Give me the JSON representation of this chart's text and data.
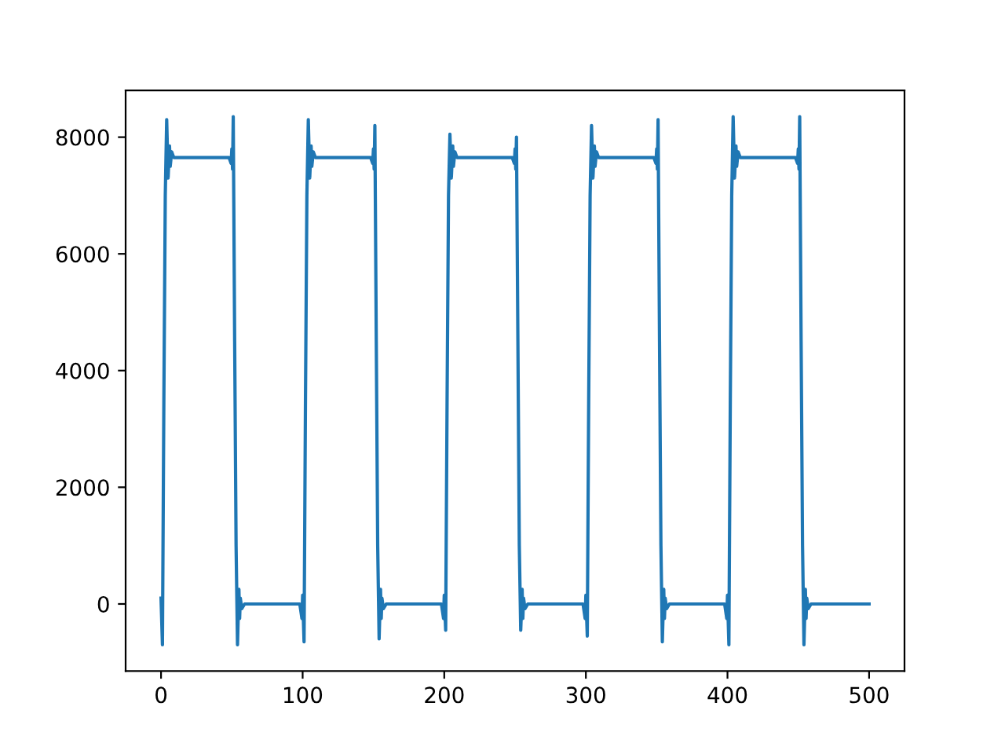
{
  "chart_data": {
    "type": "line",
    "color": "#1f77b4",
    "x": [
      0,
      1,
      2,
      3,
      4,
      5,
      6,
      6.5,
      7.5,
      9,
      48,
      49.5,
      50,
      50.5,
      51,
      52,
      53,
      54,
      55,
      55.5,
      56,
      57,
      59,
      98,
      99.5,
      100,
      101,
      102,
      103,
      104,
      105,
      106,
      106.5,
      107.5,
      109,
      148,
      149.5,
      150,
      150.5,
      151,
      152,
      153,
      154,
      155,
      155.5,
      156,
      157,
      159,
      198,
      199.5,
      200,
      201,
      202,
      203,
      204,
      205,
      206,
      206.5,
      207.5,
      209,
      248,
      249.5,
      250,
      250.5,
      251,
      252,
      253,
      254,
      255,
      255.5,
      256,
      257,
      259,
      298,
      299.5,
      300,
      301,
      302,
      303,
      304,
      305,
      306,
      306.5,
      307.5,
      309,
      348,
      349.5,
      350,
      350.5,
      351,
      352,
      353,
      354,
      355,
      355.5,
      356,
      357,
      359,
      398,
      399.5,
      400,
      401,
      402,
      403,
      404,
      405,
      406,
      406.5,
      407.5,
      409,
      448,
      449.5,
      450,
      450.5,
      451,
      452,
      453,
      454,
      455,
      455.5,
      456,
      457,
      459,
      500
    ],
    "values": [
      100,
      -700,
      3500,
      7000,
      8300,
      7300,
      7850,
      7500,
      7750,
      7650,
      7650,
      7550,
      7800,
      7450,
      8350,
      4500,
      1000,
      -700,
      250,
      -250,
      100,
      -80,
      0,
      0,
      -250,
      150,
      -650,
      3500,
      7000,
      8300,
      7300,
      7850,
      7500,
      7750,
      7650,
      7650,
      7550,
      7800,
      7450,
      8200,
      4500,
      1000,
      -600,
      250,
      -250,
      100,
      -80,
      0,
      0,
      -250,
      150,
      -450,
      3500,
      7000,
      8050,
      7300,
      7850,
      7500,
      7750,
      7650,
      7650,
      7550,
      7800,
      7450,
      8000,
      4500,
      1000,
      -450,
      250,
      -250,
      100,
      -80,
      0,
      0,
      -250,
      150,
      -550,
      3500,
      7000,
      8200,
      7300,
      7850,
      7500,
      7750,
      7650,
      7650,
      7550,
      7800,
      7450,
      8300,
      4500,
      1000,
      -650,
      250,
      -250,
      100,
      -80,
      0,
      0,
      -250,
      150,
      -700,
      3500,
      7000,
      8350,
      7300,
      7850,
      7500,
      7750,
      7650,
      7650,
      7550,
      7800,
      7450,
      8350,
      4500,
      1000,
      -700,
      250,
      -250,
      100,
      -80,
      0,
      0
    ],
    "xlim": [
      -25,
      525
    ],
    "ylim": [
      -1150,
      8800
    ],
    "xticks": [
      0,
      100,
      200,
      300,
      400,
      500
    ],
    "yticks": [
      0,
      2000,
      4000,
      6000,
      8000
    ]
  }
}
